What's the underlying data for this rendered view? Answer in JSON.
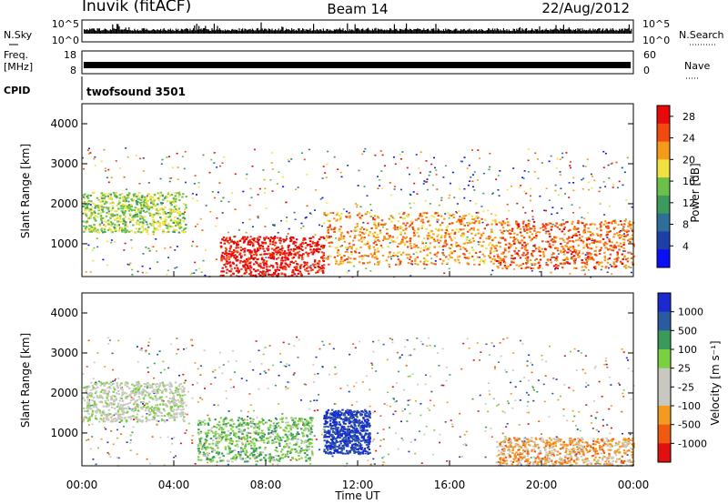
{
  "header": {
    "station": "Inuvik (fitACF)",
    "beam": "Beam 14",
    "date": "22/Aug/2012"
  },
  "strips": {
    "nsky": {
      "label": "N.Sky",
      "right_label": "N.Search",
      "ticks_left": [
        "10^5",
        "10^0"
      ],
      "ticks_right": [
        "10^5",
        "10^0"
      ]
    },
    "freq": {
      "label_line1": "Freq.",
      "label_line2": "[MHz]",
      "right_label": "Nave",
      "ticks_left": [
        "18",
        "8"
      ],
      "ticks_right": [
        "60",
        "0"
      ]
    },
    "cpid": {
      "label": "CPID",
      "value": "twofsound 3501"
    }
  },
  "colors": {
    "power_scale": [
      "#0a10f5",
      "#1f3fa8",
      "#2f6e98",
      "#3c9a5c",
      "#6cc04a",
      "#f0e040",
      "#f59a1a",
      "#f04a10",
      "#e80a0a"
    ],
    "velocity_scale": [
      "#e01010",
      "#f05a10",
      "#f59a20",
      "#c8c8c0",
      "#c8c8c0",
      "#7ad040",
      "#3a9a5a",
      "#2a5aa0",
      "#1a2ad0"
    ]
  },
  "chart_data": [
    {
      "type": "heatmap",
      "title": "",
      "xlabel": "",
      "ylabel": "Slant Range [km]",
      "x_ticks": [
        "00:00",
        "04:00",
        "08:00",
        "12:00",
        "16:00",
        "20:00",
        "00:00"
      ],
      "y_ticks": [
        "1000",
        "2000",
        "3000",
        "4000"
      ],
      "ylim": [
        180,
        4500
      ],
      "xlim_hours": [
        0,
        24
      ],
      "colorbar": {
        "label": "Power [dB]",
        "ticks": [
          "4",
          "8",
          "12",
          "16",
          "20",
          "24",
          "28"
        ],
        "range": [
          0,
          30
        ]
      },
      "series": [
        {
          "name": "Power",
          "points_note": "",
          "features": [
            {
              "t0": 0.0,
              "t1": 4.5,
              "r0": 1300,
              "r1": 2300,
              "level": 16
            },
            {
              "t0": 6.0,
              "t1": 10.5,
              "r0": 200,
              "r1": 1200,
              "level": 28
            },
            {
              "t0": 10.5,
              "t1": 18.0,
              "r0": 500,
              "r1": 1800,
              "level": 22
            },
            {
              "t0": 18.0,
              "t1": 24.0,
              "r0": 400,
              "r1": 1600,
              "level": 24
            }
          ]
        }
      ]
    },
    {
      "type": "heatmap",
      "title": "",
      "xlabel": "Time UT",
      "ylabel": "Slant Range [km]",
      "x_ticks": [
        "00:00",
        "04:00",
        "08:00",
        "12:00",
        "16:00",
        "20:00",
        "00:00"
      ],
      "y_ticks": [
        "1000",
        "2000",
        "3000",
        "4000"
      ],
      "ylim": [
        180,
        4500
      ],
      "xlim_hours": [
        0,
        24
      ],
      "colorbar": {
        "label": "Velocity [m s⁻¹]",
        "ticks": [
          "1000",
          "500",
          "100",
          "25",
          "-25",
          "-100",
          "-500",
          "-1000"
        ],
        "range": [
          -1200,
          1200
        ]
      },
      "series": [
        {
          "name": "Velocity",
          "features": [
            {
              "t0": 0.0,
              "t1": 4.5,
              "r0": 1300,
              "r1": 2300,
              "level": 0
            },
            {
              "t0": 5.0,
              "t1": 10.0,
              "r0": 300,
              "r1": 1400,
              "level": 300
            },
            {
              "t0": 10.5,
              "t1": 12.5,
              "r0": 500,
              "r1": 1600,
              "level": 1000
            },
            {
              "t0": 18.0,
              "t1": 24.0,
              "r0": 200,
              "r1": 900,
              "level": -500
            }
          ]
        }
      ]
    }
  ]
}
